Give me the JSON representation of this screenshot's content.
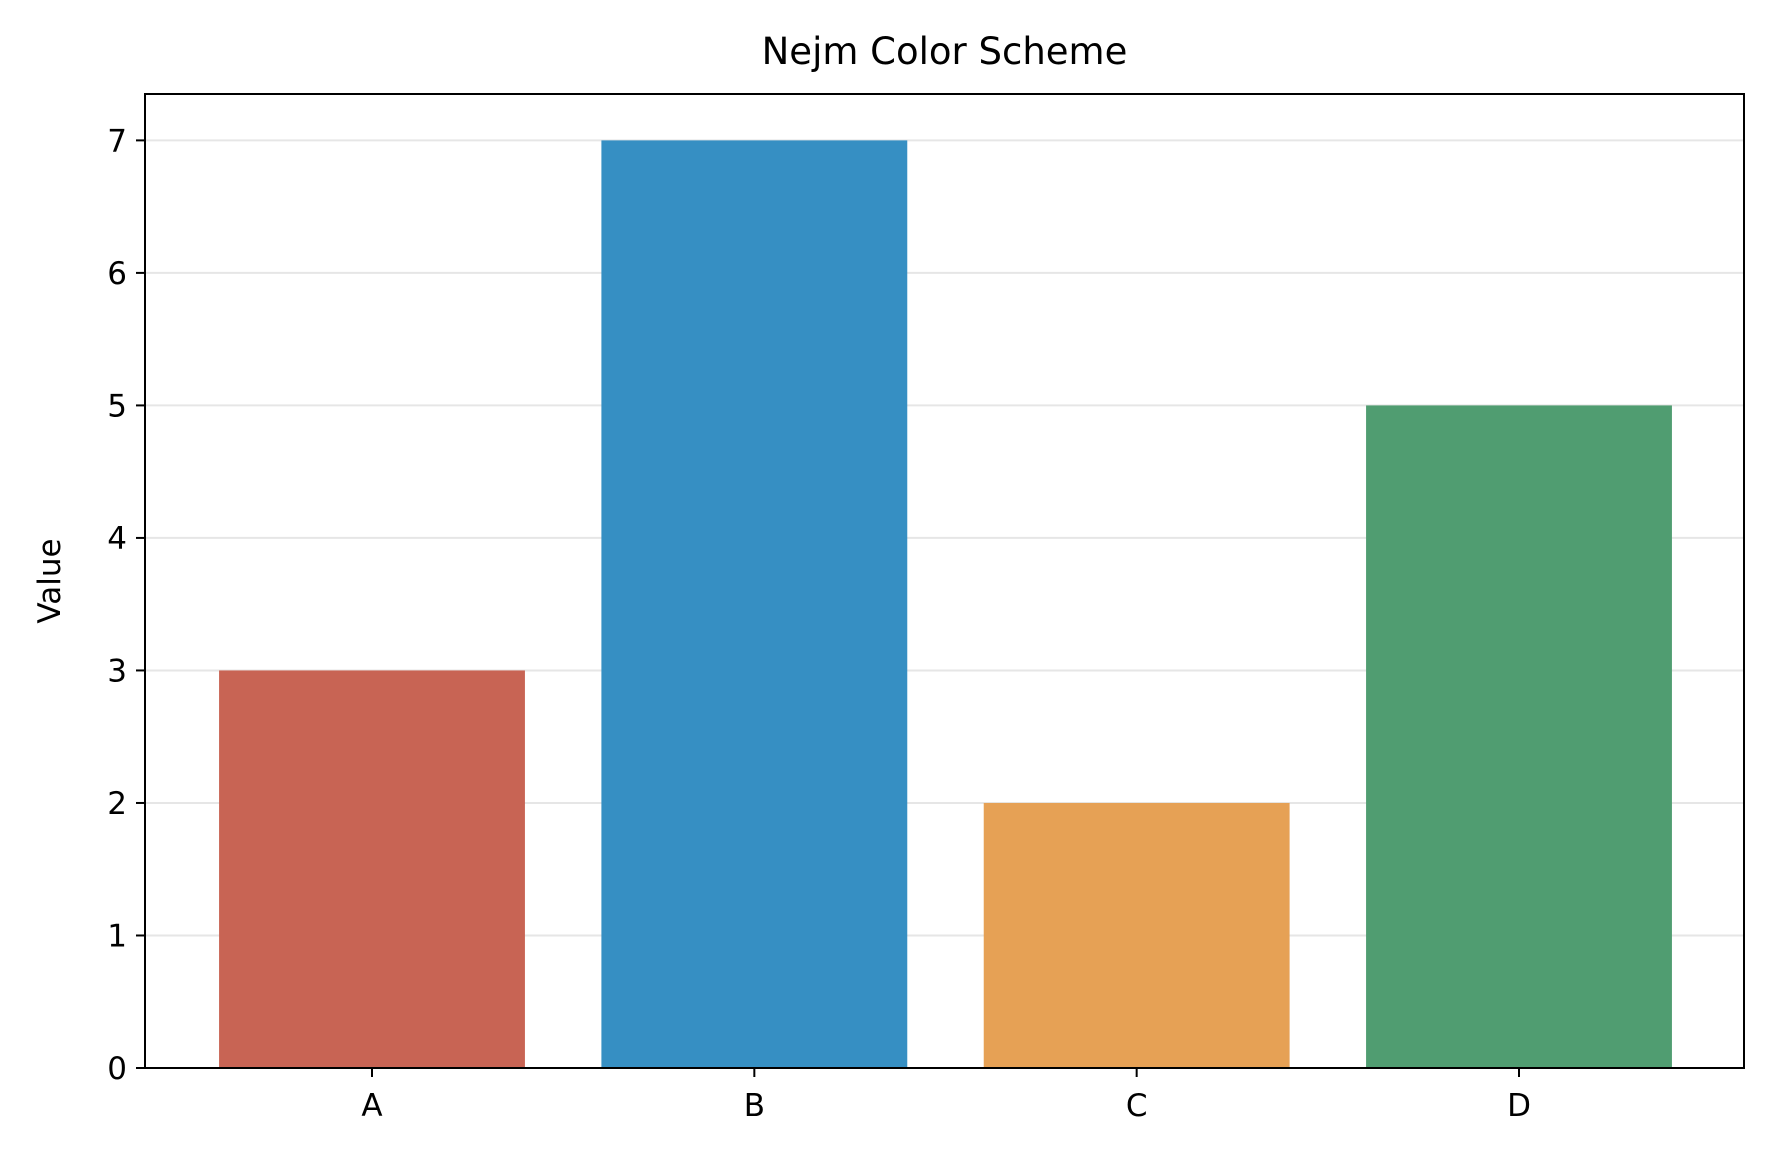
{
  "chart_data": {
    "type": "bar",
    "title": "Nejm Color Scheme",
    "xlabel": "",
    "ylabel": "Value",
    "categories": [
      "A",
      "B",
      "C",
      "D"
    ],
    "values": [
      3,
      7,
      2,
      5
    ],
    "colors": [
      "#c86454",
      "#368fc3",
      "#e6a155",
      "#509d71"
    ],
    "ylim": [
      0,
      7.35
    ],
    "yticks": [
      0,
      1,
      2,
      3,
      4,
      5,
      6,
      7
    ],
    "grid": "y",
    "grid_color": "#e6e6e6",
    "legend": "none"
  }
}
